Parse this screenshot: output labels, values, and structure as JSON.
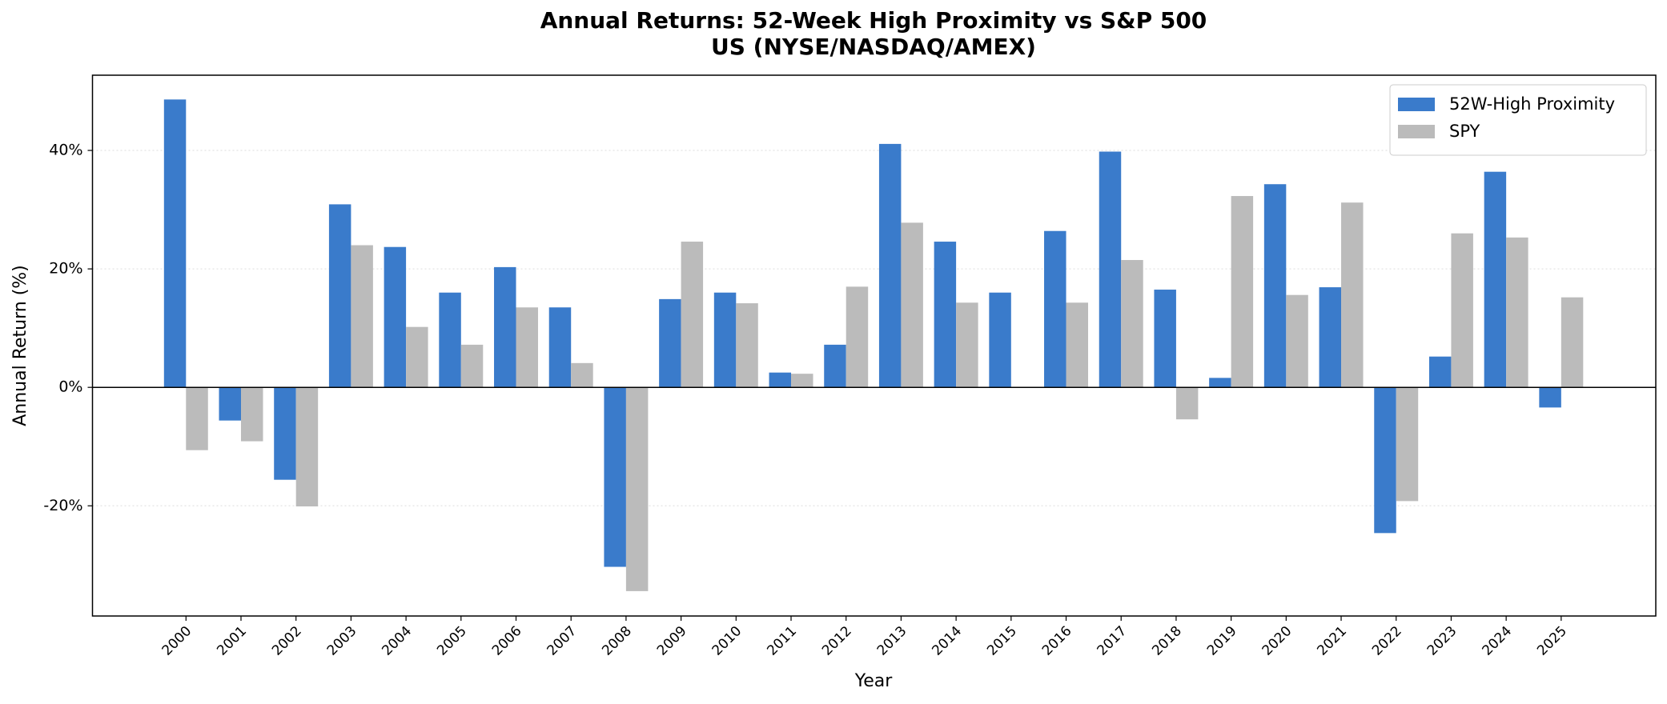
{
  "chart_data": {
    "type": "bar",
    "title": "Annual Returns: 52-Week High Proximity vs S&P 500",
    "subtitle": "US (NYSE/NASDAQ/AMEX)",
    "xlabel": "Year",
    "ylabel": "Annual Return (%)",
    "categories": [
      "2000",
      "2001",
      "2002",
      "2003",
      "2004",
      "2005",
      "2006",
      "2007",
      "2008",
      "2009",
      "2010",
      "2011",
      "2012",
      "2013",
      "2014",
      "2015",
      "2016",
      "2017",
      "2018",
      "2019",
      "2020",
      "2021",
      "2022",
      "2023",
      "2024",
      "2025"
    ],
    "series": [
      {
        "name": "52W-High Proximity",
        "color": "#3a7bcb",
        "values": [
          48.6,
          -5.6,
          -15.6,
          30.9,
          23.7,
          16.0,
          20.3,
          13.5,
          -30.3,
          14.9,
          16.0,
          2.5,
          7.2,
          41.1,
          24.6,
          16.0,
          26.4,
          39.8,
          16.5,
          1.6,
          34.3,
          16.9,
          -24.6,
          5.2,
          36.4,
          -3.4
        ]
      },
      {
        "name": "SPY",
        "color": "#bbbbbb",
        "values": [
          -10.6,
          -9.1,
          -20.1,
          24.0,
          10.2,
          7.2,
          13.5,
          4.1,
          -34.4,
          24.6,
          14.2,
          2.3,
          17.0,
          27.8,
          14.3,
          0,
          14.3,
          21.5,
          -5.4,
          32.3,
          15.6,
          31.2,
          -19.2,
          26.0,
          25.3,
          15.2
        ]
      }
    ],
    "ylim": [
      -38.6,
      52.7
    ],
    "yticks": [
      {
        "value": -20,
        "label": "-20%"
      },
      {
        "value": 0,
        "label": "0%"
      },
      {
        "value": 20,
        "label": "20%"
      },
      {
        "value": 40,
        "label": "40%"
      }
    ],
    "grid": true,
    "legend": "upper right"
  }
}
